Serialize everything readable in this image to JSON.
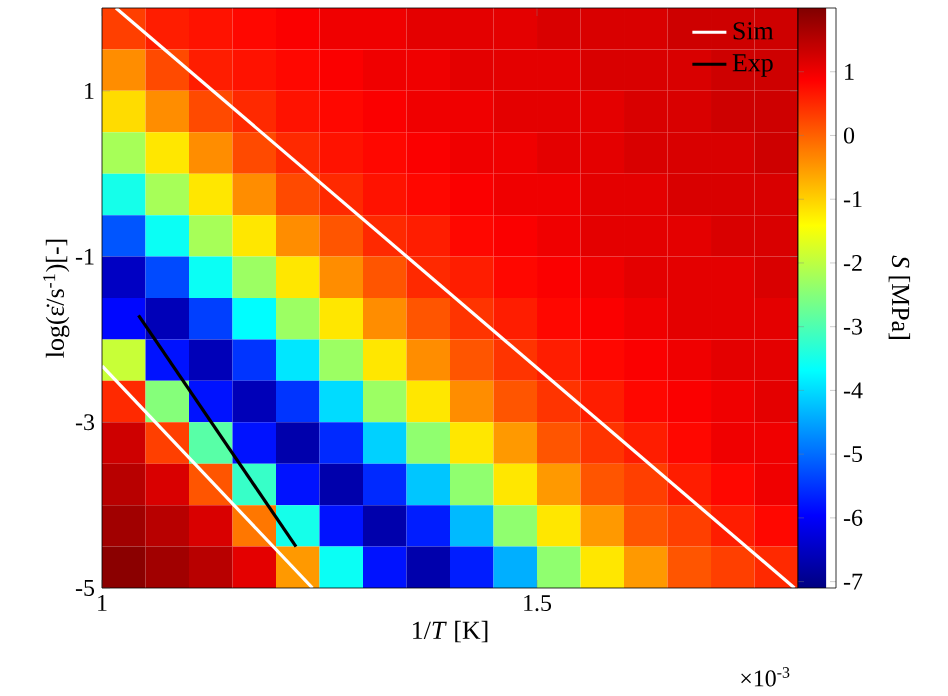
{
  "chart_data": {
    "type": "heatmap",
    "xlabel": "1/*T* [K]",
    "ylabel": "log(ε̇/s$^{-1}$)[-]",
    "clabel": "*S* [MPa]",
    "annotations": [
      "×10$^{-3}$"
    ],
    "xlim": [
      1,
      1.8
    ],
    "xticks": [
      1,
      1.5
    ],
    "ylim": [
      -5,
      2
    ],
    "yticks": [
      -5,
      -3,
      -1,
      1
    ],
    "clim": [
      -7.1,
      2.0
    ],
    "cticks": [
      -7,
      -6,
      -5,
      -4,
      -3,
      -2,
      -1,
      0,
      1
    ],
    "legend": "top right",
    "x": [
      1.025,
      1.075,
      1.125,
      1.175,
      1.225,
      1.275,
      1.325,
      1.375,
      1.425,
      1.475,
      1.525,
      1.575,
      1.625,
      1.675,
      1.725,
      1.775
    ],
    "y": [
      1.75,
      1.25,
      0.75,
      0.25,
      -0.25,
      -0.75,
      -1.25,
      -1.75,
      -2.25,
      -2.75,
      -3.25,
      -3.75,
      -4.25,
      -4.75
    ],
    "cells": [
      [
        0.3,
        0.6,
        0.7,
        0.8,
        0.9,
        1.0,
        1.0,
        1.1,
        1.1,
        1.1,
        1.2,
        1.2,
        1.2,
        1.3,
        1.3,
        1.3
      ],
      [
        -0.4,
        0.2,
        0.6,
        0.7,
        0.8,
        0.9,
        1.0,
        1.0,
        1.1,
        1.1,
        1.1,
        1.2,
        1.2,
        1.2,
        1.3,
        1.3
      ],
      [
        -1.1,
        -0.4,
        0.2,
        0.5,
        0.7,
        0.8,
        0.9,
        1.0,
        1.0,
        1.1,
        1.1,
        1.1,
        1.2,
        1.2,
        1.3,
        1.3
      ],
      [
        -2.2,
        -1.2,
        -0.4,
        0.2,
        0.5,
        0.7,
        0.8,
        0.9,
        1.0,
        1.0,
        1.1,
        1.1,
        1.2,
        1.2,
        1.2,
        1.3
      ],
      [
        -3.5,
        -2.2,
        -1.2,
        -0.4,
        0.2,
        0.5,
        0.7,
        0.8,
        0.9,
        1.0,
        1.0,
        1.1,
        1.1,
        1.2,
        1.2,
        1.2
      ],
      [
        -5.2,
        -3.6,
        -2.2,
        -1.2,
        -0.4,
        0.1,
        0.5,
        0.6,
        0.8,
        0.9,
        1.0,
        1.1,
        1.1,
        1.1,
        1.2,
        1.2
      ],
      [
        -6.5,
        -5.3,
        -3.6,
        -2.3,
        -1.2,
        -0.4,
        0.1,
        0.5,
        0.6,
        0.8,
        0.9,
        1.0,
        1.1,
        1.1,
        1.1,
        1.2
      ],
      [
        -5.9,
        -6.6,
        -5.4,
        -3.7,
        -2.3,
        -1.2,
        -0.4,
        0.1,
        0.4,
        0.6,
        0.8,
        0.9,
        1.0,
        1.1,
        1.1,
        1.1
      ],
      [
        -1.9,
        -5.8,
        -6.6,
        -5.5,
        -3.9,
        -2.3,
        -1.2,
        -0.4,
        0.1,
        0.4,
        0.6,
        0.8,
        0.9,
        1.0,
        1.1,
        1.1
      ],
      [
        0.5,
        -2.5,
        -5.8,
        -6.6,
        -5.5,
        -4.0,
        -2.3,
        -1.2,
        -0.4,
        0.1,
        0.4,
        0.6,
        0.8,
        0.9,
        1.0,
        1.1
      ],
      [
        1.3,
        0.3,
        -2.9,
        -5.8,
        -6.7,
        -5.6,
        -4.1,
        -2.4,
        -1.2,
        -0.5,
        0.1,
        0.4,
        0.6,
        0.8,
        1.0,
        1.0
      ],
      [
        1.5,
        1.2,
        0.1,
        -3.2,
        -5.8,
        -6.7,
        -5.6,
        -4.2,
        -2.4,
        -1.2,
        -0.5,
        0.1,
        0.3,
        0.6,
        0.8,
        1.0
      ],
      [
        1.7,
        1.5,
        1.2,
        -0.2,
        -3.5,
        -5.8,
        -6.7,
        -5.7,
        -4.3,
        -2.4,
        -1.2,
        -0.5,
        0.1,
        0.3,
        0.6,
        0.8
      ],
      [
        1.9,
        1.7,
        1.5,
        1.1,
        -0.5,
        -3.6,
        -5.8,
        -6.7,
        -5.7,
        -4.4,
        -2.4,
        -1.2,
        -0.5,
        0.1,
        0.3,
        0.5
      ]
    ],
    "series": [
      {
        "name": "Sim",
        "type": "line",
        "color": "#ffffff",
        "x": [
          1.016,
          1.796
        ],
        "values": [
          2,
          -5
        ]
      },
      {
        "type": "line",
        "color": "#ffffff",
        "x": [
          1.0,
          1.242
        ],
        "values": [
          -2.32,
          -5
        ]
      },
      {
        "name": "Exp",
        "type": "line",
        "color": "#000000",
        "x": [
          1.042,
          1.223
        ],
        "values": [
          -1.71,
          -4.5
        ]
      }
    ]
  }
}
